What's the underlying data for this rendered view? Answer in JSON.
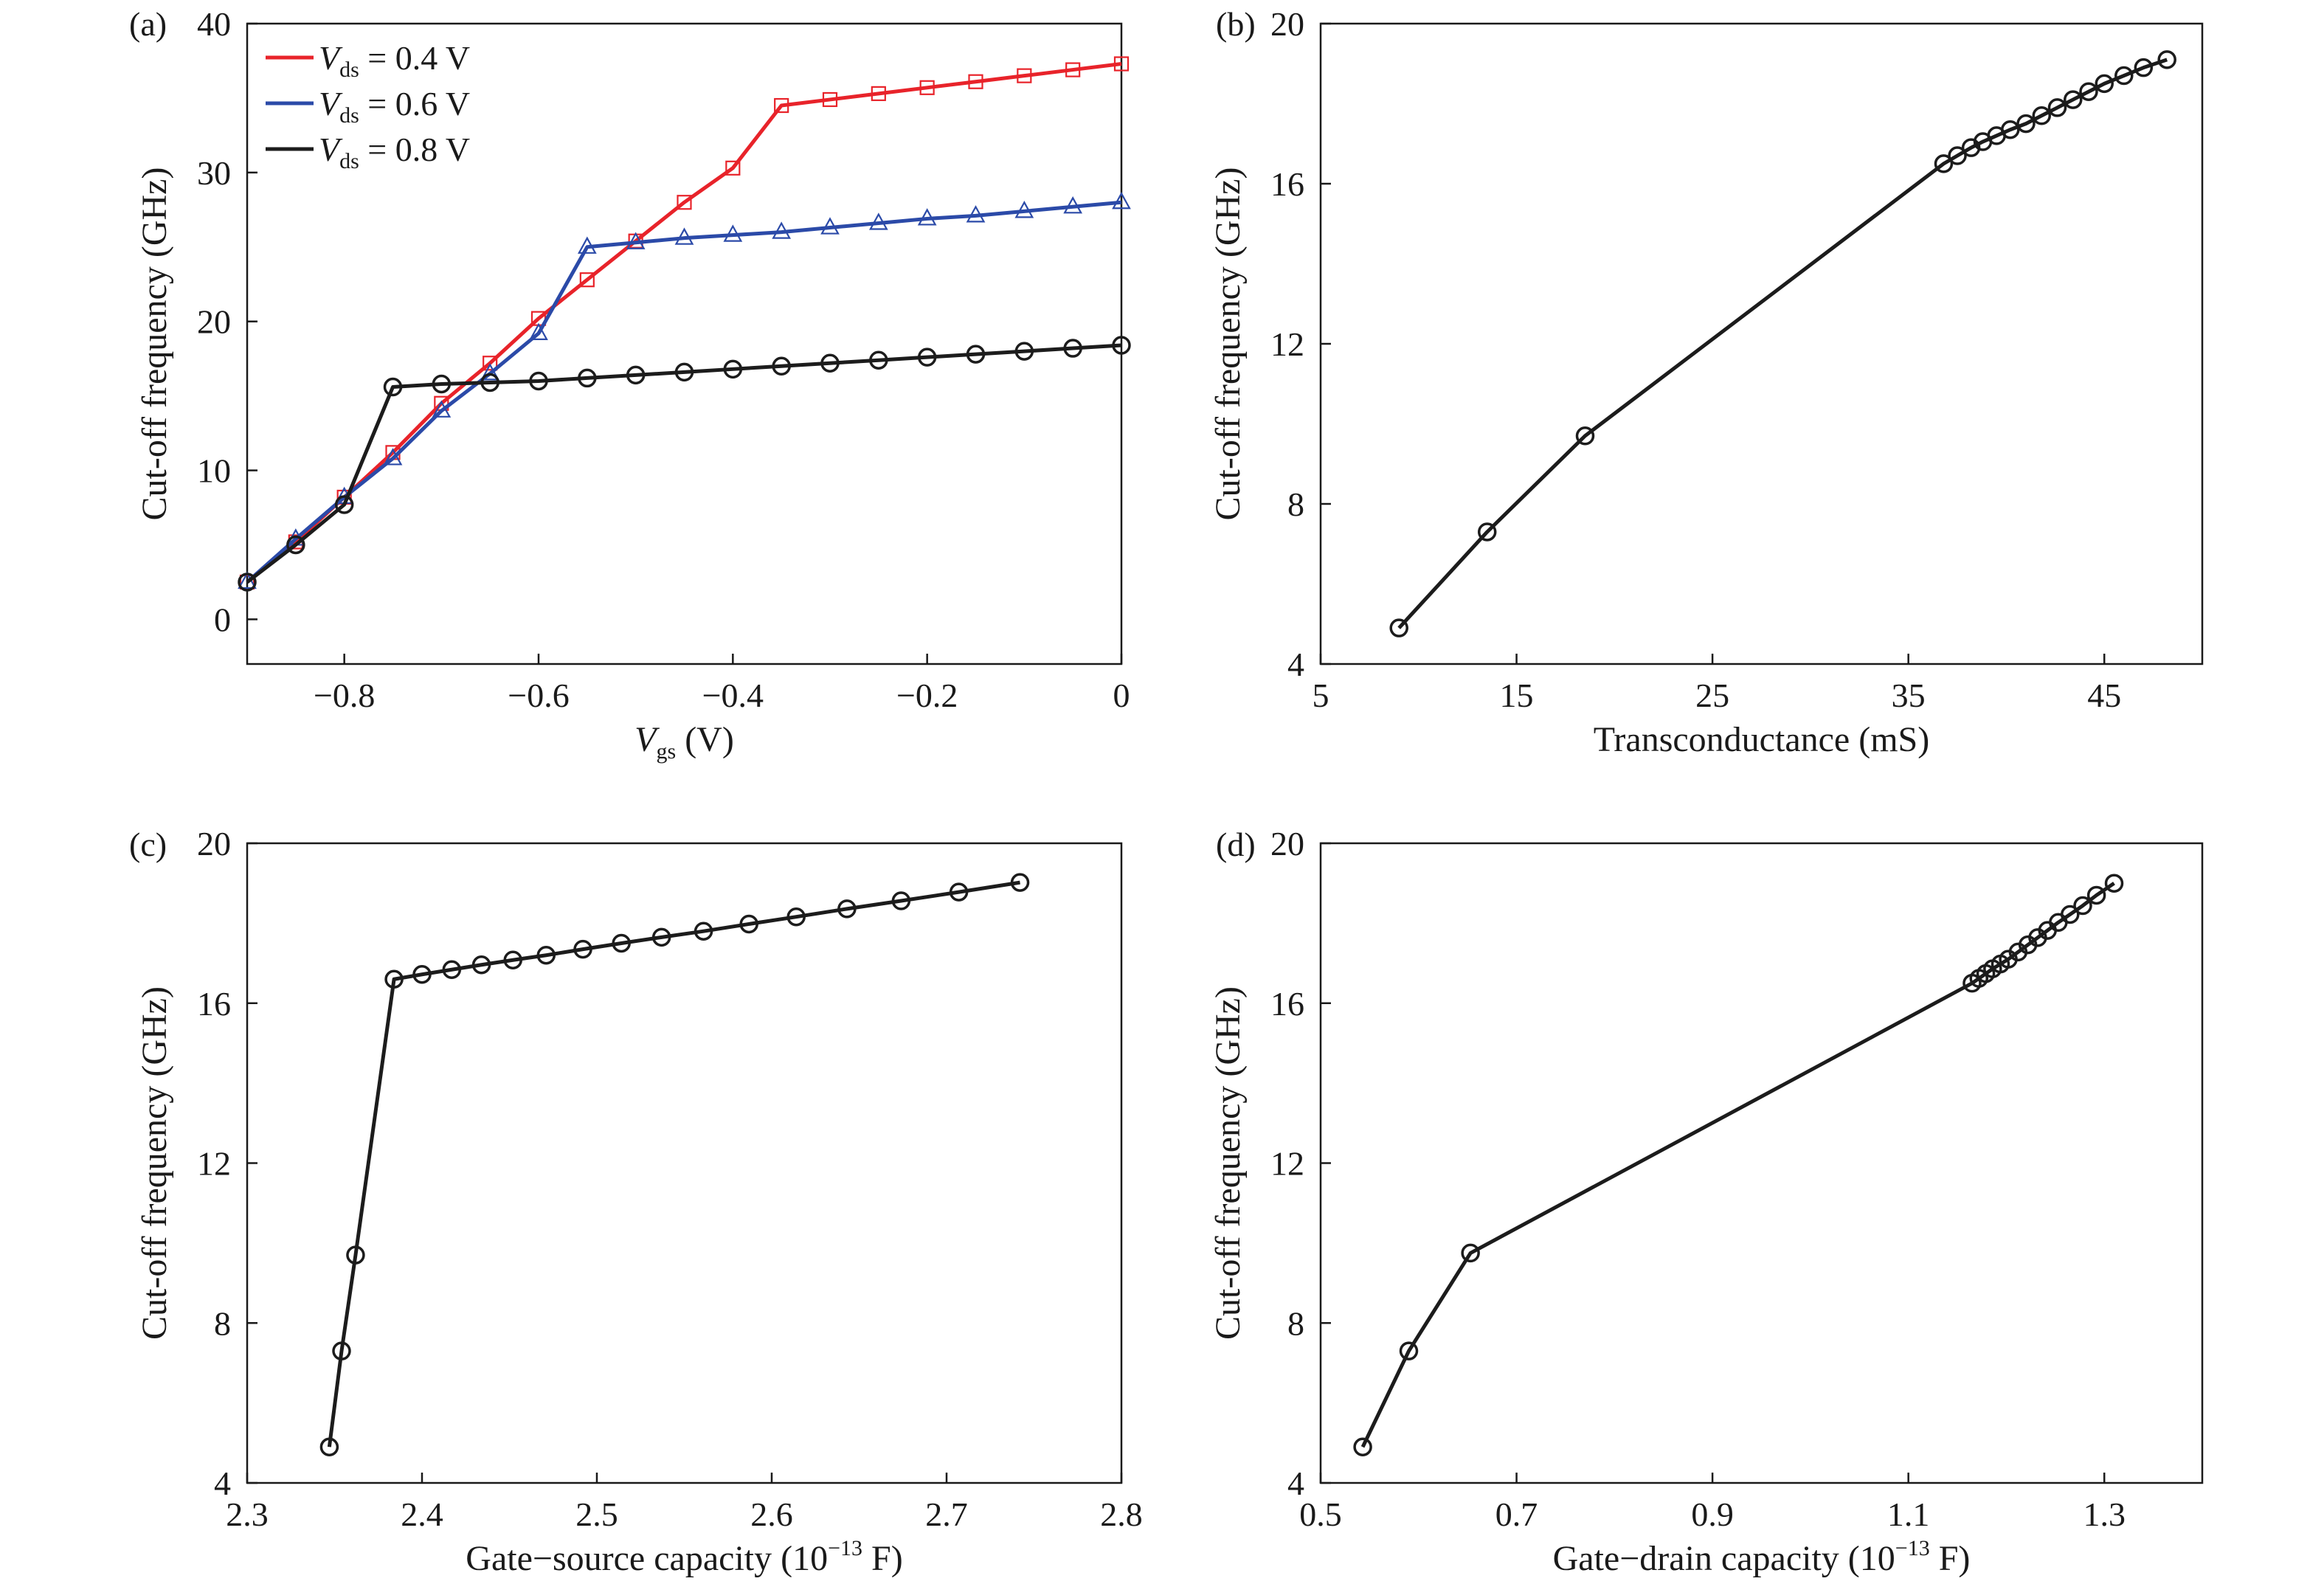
{
  "colors": {
    "red": "#e8232a",
    "blue": "#2b4aa8",
    "black": "#1c1c1c",
    "axis": "#1a1a1a"
  },
  "chart_data": [
    {
      "panel": "(a)",
      "type": "line",
      "xlabel_var": "V",
      "xlabel_sub": "gs",
      "xlabel_unit": " (V)",
      "ylabel": "Cut-off frequency (GHz)",
      "xlim": [
        -0.9,
        0
      ],
      "ylim": [
        -3,
        40
      ],
      "xticks": [
        -0.8,
        -0.6,
        -0.4,
        -0.2,
        0
      ],
      "xtick_labels": [
        "−0.8",
        "−0.6",
        "−0.4",
        "−0.2",
        "0"
      ],
      "yticks": [
        0,
        10,
        20,
        30,
        40
      ],
      "ytick_labels": [
        "0",
        "10",
        "20",
        "30",
        "40"
      ],
      "legend_position": "top-left",
      "x": [
        -0.9,
        -0.85,
        -0.8,
        -0.75,
        -0.7,
        -0.65,
        -0.6,
        -0.55,
        -0.5,
        -0.45,
        -0.4,
        -0.35,
        -0.3,
        -0.25,
        -0.2,
        -0.15,
        -0.1,
        -0.05,
        0
      ],
      "series": [
        {
          "legend_var": "V",
          "legend_sub": "ds",
          "legend_rest": " = 0.4 V",
          "color_key": "red",
          "marker": "square",
          "values": [
            2.5,
            5.2,
            8.2,
            11.2,
            14.5,
            17.2,
            20.2,
            22.8,
            25.4,
            28.0,
            30.3,
            34.5,
            34.9,
            35.3,
            35.7,
            36.1,
            36.5,
            36.9,
            37.3
          ]
        },
        {
          "legend_var": "V",
          "legend_sub": "ds",
          "legend_rest": " = 0.6 V",
          "color_key": "blue",
          "marker": "triangle",
          "values": [
            2.5,
            5.4,
            8.2,
            10.8,
            14.0,
            16.5,
            19.2,
            25.0,
            25.3,
            25.6,
            25.8,
            26.0,
            26.3,
            26.6,
            26.9,
            27.1,
            27.4,
            27.7,
            28.0
          ]
        },
        {
          "legend_var": "V",
          "legend_sub": "ds",
          "legend_rest": " = 0.8 V",
          "color_key": "black",
          "marker": "circle",
          "values": [
            2.5,
            5.0,
            7.7,
            15.6,
            15.8,
            15.9,
            16.0,
            16.2,
            16.4,
            16.6,
            16.8,
            17.0,
            17.2,
            17.4,
            17.6,
            17.8,
            18.0,
            18.2,
            18.4
          ]
        }
      ]
    },
    {
      "panel": "(b)",
      "type": "line",
      "xlabel": "Transconductance (mS)",
      "ylabel": "Cut-off frequency (GHz)",
      "xlim": [
        5,
        50
      ],
      "ylim": [
        4,
        20
      ],
      "xticks": [
        5,
        15,
        25,
        35,
        45
      ],
      "xtick_labels": [
        "5",
        "15",
        "25",
        "35",
        "45"
      ],
      "yticks": [
        4,
        8,
        12,
        16,
        20
      ],
      "ytick_labels": [
        "4",
        "8",
        "12",
        "16",
        "20"
      ],
      "series": [
        {
          "color_key": "black",
          "marker": "circle",
          "x": [
            9.0,
            13.5,
            18.5,
            36.8,
            37.5,
            38.2,
            38.8,
            39.5,
            40.2,
            41.0,
            41.8,
            42.6,
            43.4,
            44.2,
            45.0,
            46.0,
            47.0,
            48.2
          ],
          "y": [
            4.9,
            7.3,
            9.7,
            16.5,
            16.7,
            16.9,
            17.05,
            17.2,
            17.35,
            17.5,
            17.7,
            17.9,
            18.1,
            18.3,
            18.5,
            18.7,
            18.9,
            19.1
          ]
        }
      ]
    },
    {
      "panel": "(c)",
      "type": "line",
      "xlabel_main": "Gate−source capacity (10",
      "xlabel_sup": "−13",
      "xlabel_tail": " F)",
      "ylabel": "Cut-off frequency (GHz)",
      "xlim": [
        2.3,
        2.8
      ],
      "ylim": [
        4,
        20
      ],
      "xticks": [
        2.3,
        2.4,
        2.5,
        2.6,
        2.7,
        2.8
      ],
      "xtick_labels": [
        "2.3",
        "2.4",
        "2.5",
        "2.6",
        "2.7",
        "2.8"
      ],
      "yticks": [
        4,
        8,
        12,
        16,
        20
      ],
      "ytick_labels": [
        "4",
        "8",
        "12",
        "16",
        "20"
      ],
      "series": [
        {
          "color_key": "black",
          "marker": "circle",
          "x": [
            2.347,
            2.354,
            2.362,
            2.384,
            2.4,
            2.417,
            2.434,
            2.452,
            2.471,
            2.492,
            2.514,
            2.537,
            2.561,
            2.587,
            2.614,
            2.643,
            2.674,
            2.707,
            2.742
          ],
          "y": [
            4.9,
            7.3,
            9.7,
            16.6,
            16.72,
            16.84,
            16.96,
            17.08,
            17.2,
            17.35,
            17.5,
            17.65,
            17.8,
            17.98,
            18.16,
            18.36,
            18.56,
            18.78,
            19.02
          ]
        }
      ]
    },
    {
      "panel": "(d)",
      "type": "line",
      "xlabel_main": "Gate−drain capacity (10",
      "xlabel_sup": "−13",
      "xlabel_tail": " F)",
      "ylabel": "Cut-off frequency (GHz)",
      "xlim": [
        0.5,
        1.4
      ],
      "ylim": [
        4,
        20
      ],
      "xticks": [
        0.5,
        0.7,
        0.9,
        1.1,
        1.3
      ],
      "xtick_labels": [
        "0.5",
        "0.7",
        "0.9",
        "1.1",
        "1.3"
      ],
      "yticks": [
        4,
        8,
        12,
        16,
        20
      ],
      "ytick_labels": [
        "4",
        "8",
        "12",
        "16",
        "20"
      ],
      "series": [
        {
          "color_key": "black",
          "marker": "circle",
          "x": [
            0.543,
            0.59,
            0.653,
            1.165,
            1.172,
            1.179,
            1.186,
            1.194,
            1.202,
            1.212,
            1.222,
            1.232,
            1.242,
            1.253,
            1.265,
            1.278,
            1.292,
            1.31
          ],
          "y": [
            4.9,
            7.3,
            9.75,
            16.5,
            16.62,
            16.74,
            16.86,
            16.98,
            17.1,
            17.28,
            17.46,
            17.64,
            17.82,
            18.02,
            18.22,
            18.44,
            18.7,
            19.0
          ]
        }
      ]
    }
  ]
}
